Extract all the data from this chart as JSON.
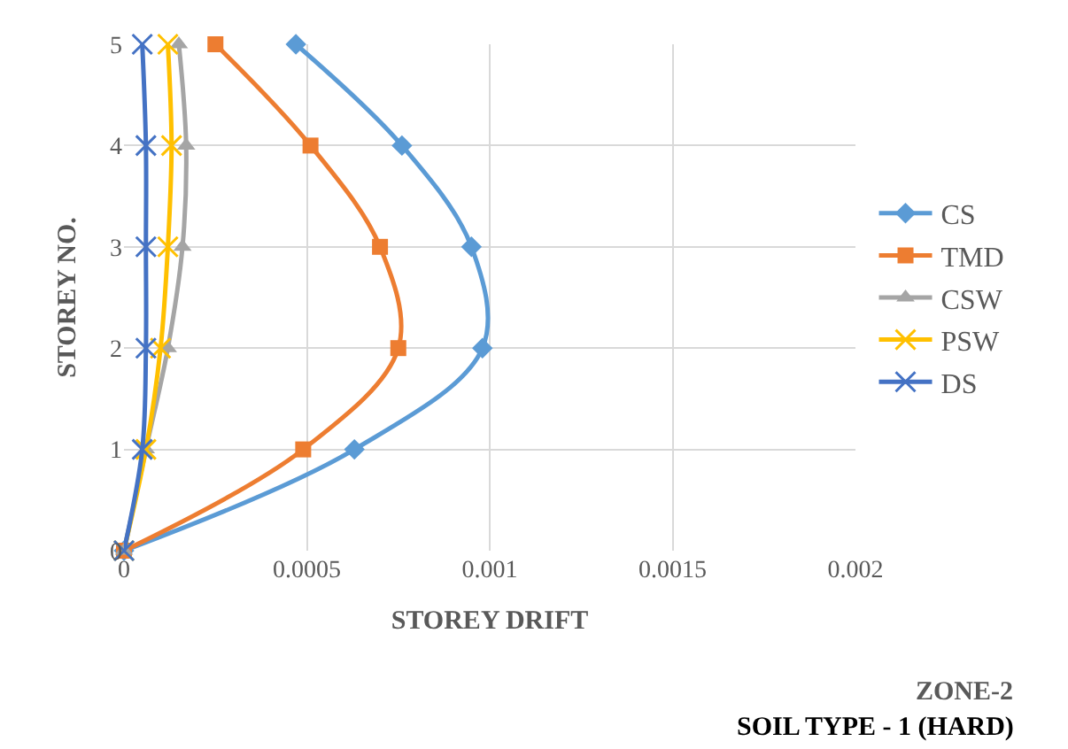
{
  "chart_data": {
    "type": "line",
    "xlabel": "STOREY DRIFT",
    "ylabel": "STOREY NO.",
    "xlim": [
      0,
      0.002
    ],
    "xticks": [
      0,
      0.0005,
      0.001,
      0.0015,
      0.002
    ],
    "ylim": [
      0,
      5
    ],
    "yticks": [
      0,
      1,
      2,
      3,
      4,
      5
    ],
    "grid": true,
    "legend": "right",
    "annotations": [
      "ZONE-2",
      "SOIL TYPE - 1 (HARD)"
    ],
    "series": [
      {
        "name": "CS",
        "color": "#5b9bd5",
        "marker": "diamond",
        "x": [
          0,
          0.00063,
          0.00098,
          0.00095,
          0.00076,
          0.00047
        ],
        "values": [
          0,
          1,
          2,
          3,
          4,
          5
        ]
      },
      {
        "name": "TMD",
        "color": "#ed7d31",
        "marker": "square",
        "x": [
          0,
          0.00049,
          0.00075,
          0.0007,
          0.00051,
          0.00025
        ],
        "values": [
          0,
          1,
          2,
          3,
          4,
          5
        ]
      },
      {
        "name": "CSW",
        "color": "#a5a5a5",
        "marker": "triangle",
        "x": [
          0,
          6e-05,
          0.00012,
          0.00016,
          0.00017,
          0.00015
        ],
        "values": [
          0,
          1,
          2,
          3,
          4,
          5
        ]
      },
      {
        "name": "PSW",
        "color": "#ffc000",
        "marker": "cross",
        "x": [
          0,
          6e-05,
          0.0001,
          0.00012,
          0.00013,
          0.00012
        ],
        "values": [
          0,
          1,
          2,
          3,
          4,
          5
        ]
      },
      {
        "name": "DS",
        "color": "#4472c4",
        "marker": "cross",
        "x": [
          0,
          5e-05,
          6e-05,
          6e-05,
          6e-05,
          5e-05
        ],
        "values": [
          0,
          1,
          2,
          3,
          4,
          5
        ]
      }
    ]
  }
}
